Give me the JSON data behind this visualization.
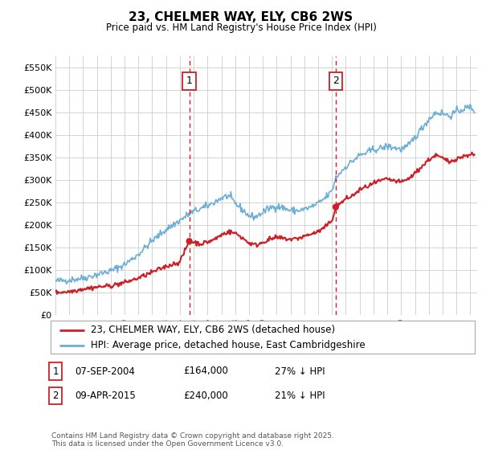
{
  "title": "23, CHELMER WAY, ELY, CB6 2WS",
  "subtitle": "Price paid vs. HM Land Registry's House Price Index (HPI)",
  "ylim": [
    0,
    575000
  ],
  "yticks": [
    0,
    50000,
    100000,
    150000,
    200000,
    250000,
    300000,
    350000,
    400000,
    450000,
    500000,
    550000
  ],
  "ytick_labels": [
    "£0",
    "£50K",
    "£100K",
    "£150K",
    "£200K",
    "£250K",
    "£300K",
    "£350K",
    "£400K",
    "£450K",
    "£500K",
    "£550K"
  ],
  "background_color": "#ffffff",
  "plot_background": "#ffffff",
  "grid_color": "#cccccc",
  "purchase1_date": 2004.68,
  "purchase1_price": 164000,
  "purchase2_date": 2015.27,
  "purchase2_price": 240000,
  "legend_line1": "23, CHELMER WAY, ELY, CB6 2WS (detached house)",
  "legend_line2": "HPI: Average price, detached house, East Cambridgeshire",
  "table_row1": [
    "1",
    "07-SEP-2004",
    "£164,000",
    "27% ↓ HPI"
  ],
  "table_row2": [
    "2",
    "09-APR-2015",
    "£240,000",
    "21% ↓ HPI"
  ],
  "footnote": "Contains HM Land Registry data © Crown copyright and database right 2025.\nThis data is licensed under the Open Government Licence v3.0.",
  "hpi_color": "#6baed6",
  "price_color": "#cb2026",
  "dashed_color": "#cb2026",
  "xmin": 1995,
  "xmax": 2025.5,
  "hpi_anchors": [
    [
      1995.0,
      75000
    ],
    [
      1996.0,
      78000
    ],
    [
      1997.0,
      82000
    ],
    [
      1998.0,
      90000
    ],
    [
      1999.0,
      98000
    ],
    [
      2000.0,
      112000
    ],
    [
      2001.0,
      135000
    ],
    [
      2002.0,
      165000
    ],
    [
      2003.0,
      190000
    ],
    [
      2004.0,
      210000
    ],
    [
      2004.68,
      225000
    ],
    [
      2005.0,
      230000
    ],
    [
      2006.0,
      242000
    ],
    [
      2007.0,
      260000
    ],
    [
      2007.5,
      265000
    ],
    [
      2008.0,
      248000
    ],
    [
      2008.5,
      235000
    ],
    [
      2009.0,
      220000
    ],
    [
      2009.5,
      218000
    ],
    [
      2010.0,
      228000
    ],
    [
      2010.5,
      238000
    ],
    [
      2011.0,
      242000
    ],
    [
      2011.5,
      238000
    ],
    [
      2012.0,
      232000
    ],
    [
      2012.5,
      232000
    ],
    [
      2013.0,
      235000
    ],
    [
      2013.5,
      240000
    ],
    [
      2014.0,
      248000
    ],
    [
      2014.5,
      260000
    ],
    [
      2015.0,
      275000
    ],
    [
      2015.27,
      305000
    ],
    [
      2016.0,
      330000
    ],
    [
      2017.0,
      355000
    ],
    [
      2017.5,
      360000
    ],
    [
      2018.0,
      368000
    ],
    [
      2018.5,
      370000
    ],
    [
      2019.0,
      375000
    ],
    [
      2019.5,
      372000
    ],
    [
      2020.0,
      368000
    ],
    [
      2020.5,
      375000
    ],
    [
      2021.0,
      395000
    ],
    [
      2021.5,
      415000
    ],
    [
      2022.0,
      435000
    ],
    [
      2022.5,
      450000
    ],
    [
      2023.0,
      448000
    ],
    [
      2023.5,
      442000
    ],
    [
      2024.0,
      452000
    ],
    [
      2024.5,
      458000
    ],
    [
      2025.0,
      462000
    ],
    [
      2025.3,
      455000
    ]
  ],
  "price_anchors": [
    [
      1995.0,
      50000
    ],
    [
      1996.0,
      52000
    ],
    [
      1997.0,
      58000
    ],
    [
      1998.0,
      62000
    ],
    [
      1999.0,
      65000
    ],
    [
      2000.0,
      72000
    ],
    [
      2001.0,
      82000
    ],
    [
      2002.0,
      95000
    ],
    [
      2003.0,
      108000
    ],
    [
      2004.0,
      118000
    ],
    [
      2004.68,
      164000
    ],
    [
      2005.0,
      162000
    ],
    [
      2005.5,
      158000
    ],
    [
      2006.0,
      162000
    ],
    [
      2006.5,
      168000
    ],
    [
      2007.0,
      178000
    ],
    [
      2007.5,
      185000
    ],
    [
      2008.0,
      182000
    ],
    [
      2008.5,
      172000
    ],
    [
      2009.0,
      160000
    ],
    [
      2009.5,
      155000
    ],
    [
      2010.0,
      162000
    ],
    [
      2010.5,
      168000
    ],
    [
      2011.0,
      172000
    ],
    [
      2011.5,
      170000
    ],
    [
      2012.0,
      168000
    ],
    [
      2012.5,
      170000
    ],
    [
      2013.0,
      175000
    ],
    [
      2013.5,
      180000
    ],
    [
      2014.0,
      185000
    ],
    [
      2014.5,
      195000
    ],
    [
      2015.0,
      210000
    ],
    [
      2015.27,
      240000
    ],
    [
      2016.0,
      258000
    ],
    [
      2016.5,
      265000
    ],
    [
      2017.0,
      278000
    ],
    [
      2017.5,
      285000
    ],
    [
      2018.0,
      292000
    ],
    [
      2018.5,
      298000
    ],
    [
      2019.0,
      302000
    ],
    [
      2019.5,
      298000
    ],
    [
      2020.0,
      295000
    ],
    [
      2020.5,
      302000
    ],
    [
      2021.0,
      315000
    ],
    [
      2021.5,
      330000
    ],
    [
      2022.0,
      345000
    ],
    [
      2022.5,
      355000
    ],
    [
      2023.0,
      348000
    ],
    [
      2023.5,
      340000
    ],
    [
      2024.0,
      348000
    ],
    [
      2024.5,
      352000
    ],
    [
      2025.0,
      358000
    ],
    [
      2025.3,
      355000
    ]
  ]
}
